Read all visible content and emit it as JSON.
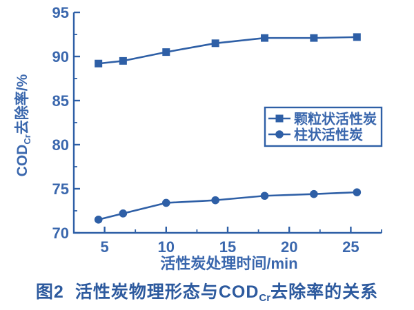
{
  "colors": {
    "accent": "#2e5fa6",
    "axis_text": "#3a67ad",
    "caption_text": "#2d5a9e",
    "background": "#ffffff"
  },
  "chart_data": {
    "type": "line",
    "title": "",
    "xlabel": "活性炭处理时间/min",
    "ylabel_parts": {
      "pre": "COD",
      "sub": "Cr",
      "post": "去除率/%"
    },
    "x": [
      4.5,
      6.5,
      10,
      14,
      18,
      22,
      25.5
    ],
    "series": [
      {
        "name": "颗粒状活性炭",
        "marker": "square",
        "values": [
          89.2,
          89.5,
          90.5,
          91.5,
          92.1,
          92.1,
          92.2
        ]
      },
      {
        "name": "柱状活性炭",
        "marker": "circle",
        "values": [
          71.5,
          72.2,
          73.4,
          73.7,
          74.2,
          74.4,
          74.6
        ]
      }
    ],
    "xlim": [
      2.5,
      27.5
    ],
    "ylim": [
      70,
      95
    ],
    "x_major_ticks": [
      5,
      10,
      15,
      20,
      25
    ],
    "x_minor_ticks": [
      7.5,
      12.5,
      17.5,
      22.5,
      27.5
    ],
    "y_major_ticks": [
      70,
      75,
      80,
      85,
      90,
      95
    ],
    "y_minor_ticks": [
      72.5,
      77.5,
      82.5,
      87.5,
      92.5
    ],
    "grid": false,
    "legend": {
      "position": "middle-right",
      "border": true,
      "entries": [
        "颗粒状活性炭",
        "柱状活性炭"
      ]
    }
  },
  "caption": {
    "prefix": "图2",
    "body1": "活性炭物理形态与COD",
    "sub": "Cr",
    "body2": "去除率的关系"
  }
}
